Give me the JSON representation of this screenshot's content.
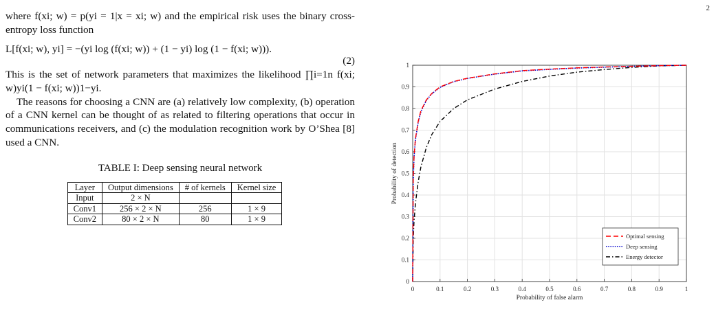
{
  "page_number": "2",
  "text": {
    "para1": "where f(xi; w) = p(yi = 1|x = xi; w) and the empirical risk uses the binary cross-entropy loss function",
    "equation": "L[f(xi; w), yi] = −(yi log (f(xi; w)) + (1 − yi) log (1 − f(xi; w))).",
    "equation_number": "(2)",
    "para2": "This is the set of network parameters that maximizes the likelihood ∏i=1n f(xi; w)yi(1 − f(xi; w))1−yi.",
    "para3": "The reasons for choosing a CNN are (a) relatively low complexity, (b) operation of a CNN kernel can be thought of as related to filtering operations that occur in communications receivers, and (c) the modulation recognition work by O’Shea [8] used a CNN."
  },
  "table": {
    "caption": "TABLE I: Deep sensing neural network",
    "headers": [
      "Layer",
      "Output dimensions",
      "# of kernels",
      "Kernel size"
    ],
    "rows": [
      [
        "Input",
        "2 × N",
        "",
        ""
      ],
      [
        "Conv1",
        "256 × 2 × N",
        "256",
        "1 × 9"
      ],
      [
        "Conv2",
        "80 × 2 × N",
        "80",
        "1 × 9"
      ]
    ]
  },
  "chart_data": {
    "type": "line",
    "xlabel": "Probability of false alarm",
    "ylabel": "Probability of detection",
    "xlim": [
      0,
      1
    ],
    "ylim": [
      0,
      1
    ],
    "x_ticks": [
      "0",
      "0.1",
      "0.2",
      "0.3",
      "0.4",
      "0.5",
      "0.6",
      "0.7",
      "0.8",
      "0.9",
      "1"
    ],
    "y_ticks": [
      "0",
      "0.1",
      "0.2",
      "0.3",
      "0.4",
      "0.5",
      "0.6",
      "0.7",
      "0.8",
      "0.9",
      "1"
    ],
    "grid": true,
    "legend_position": "bottom-right",
    "series": [
      {
        "name": "Optimal sensing",
        "color": "#ff0000",
        "style": "dashed",
        "x": [
          0,
          0.002,
          0.005,
          0.01,
          0.02,
          0.03,
          0.05,
          0.07,
          0.1,
          0.15,
          0.2,
          0.3,
          0.4,
          0.5,
          0.6,
          0.7,
          0.8,
          0.9,
          1
        ],
        "y": [
          0,
          0.48,
          0.58,
          0.66,
          0.74,
          0.79,
          0.84,
          0.87,
          0.9,
          0.925,
          0.94,
          0.96,
          0.975,
          0.982,
          0.988,
          0.992,
          0.995,
          0.998,
          1
        ]
      },
      {
        "name": "Deep sensing",
        "color": "#0000cc",
        "style": "dotted",
        "x": [
          0,
          0.002,
          0.005,
          0.01,
          0.02,
          0.03,
          0.05,
          0.07,
          0.1,
          0.15,
          0.2,
          0.3,
          0.4,
          0.5,
          0.6,
          0.7,
          0.8,
          0.9,
          1
        ],
        "y": [
          0,
          0.47,
          0.575,
          0.655,
          0.735,
          0.785,
          0.838,
          0.868,
          0.898,
          0.924,
          0.939,
          0.959,
          0.974,
          0.981,
          0.987,
          0.991,
          0.995,
          0.998,
          1
        ]
      },
      {
        "name": "Energy detector",
        "color": "#000000",
        "style": "dashdot",
        "x": [
          0,
          0.002,
          0.005,
          0.01,
          0.02,
          0.03,
          0.05,
          0.07,
          0.1,
          0.15,
          0.2,
          0.3,
          0.4,
          0.5,
          0.6,
          0.7,
          0.8,
          0.9,
          1
        ],
        "y": [
          0,
          0.2,
          0.28,
          0.36,
          0.46,
          0.53,
          0.62,
          0.68,
          0.74,
          0.8,
          0.84,
          0.89,
          0.925,
          0.95,
          0.968,
          0.98,
          0.99,
          0.997,
          1
        ]
      }
    ]
  }
}
